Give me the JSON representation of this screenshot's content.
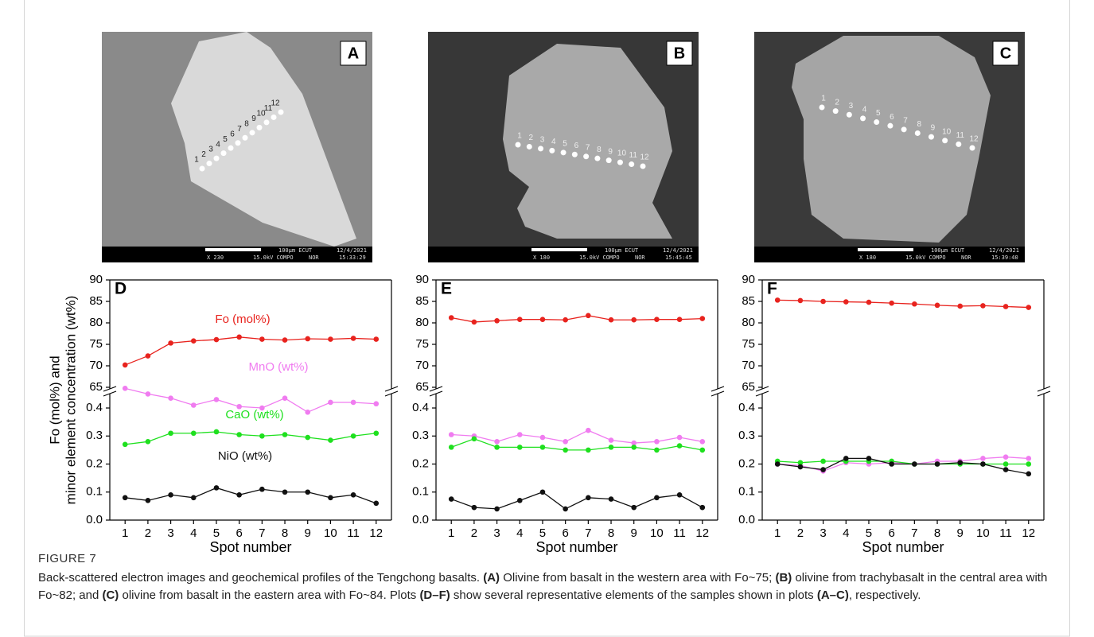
{
  "images": [
    {
      "panel": "A",
      "background": "#8a8a8a",
      "grain": "#d9d9d9",
      "scale_bar": "100μm ECUT",
      "date": "12/4/2021",
      "magnification": "X 230",
      "settings": "15.0kV COMPO",
      "mode": "NOR",
      "time": "15:33:29",
      "spot_labels": [
        1,
        2,
        3,
        4,
        5,
        6,
        7,
        8,
        9,
        10,
        11,
        12
      ]
    },
    {
      "panel": "B",
      "background": "#373737",
      "grain": "#a9a9a9",
      "scale_bar": "100μm ECUT",
      "date": "12/4/2021",
      "magnification": "X 180",
      "settings": "15.0kV COMPO",
      "mode": "NOR",
      "time": "15:45:45",
      "spot_labels": [
        1,
        2,
        3,
        4,
        5,
        6,
        7,
        8,
        9,
        10,
        11,
        12
      ]
    },
    {
      "panel": "C",
      "background": "#3a3a3a",
      "grain": "#a5a5a5",
      "scale_bar": "100μm ECUT",
      "date": "12/4/2021",
      "magnification": "X 180",
      "settings": "15.0kV COMPO",
      "mode": "NOR",
      "time": "15:39:40",
      "spot_labels": [
        1,
        2,
        3,
        4,
        5,
        6,
        7,
        8,
        9,
        10,
        11,
        12
      ]
    }
  ],
  "chart_data": [
    {
      "type": "line",
      "panel": "D",
      "ylabel_lines": [
        "Fo (mol%) and",
        "minor element concentration (wt%)"
      ],
      "xlabel": "Spot number",
      "x": [
        1,
        2,
        3,
        4,
        5,
        6,
        7,
        8,
        9,
        10,
        11,
        12
      ],
      "xlim": [
        0.33,
        12.67
      ],
      "xticks": [
        1,
        2,
        3,
        4,
        5,
        6,
        7,
        8,
        9,
        10,
        11,
        12
      ],
      "ylim": [
        0,
        0.45
      ],
      "yticks": [
        {
          "value": 0,
          "label": "0.0"
        },
        0.1,
        0.2,
        0.3,
        0.4
      ],
      "y2lim": [
        65,
        90
      ],
      "y2ticks": [
        65,
        70,
        75,
        80,
        85,
        90
      ],
      "broken_axis": true,
      "series": [
        {
          "name": "Fo (mol%)",
          "color": "#e8231e",
          "axis": "y2",
          "values": [
            70.2,
            72.3,
            75.3,
            75.8,
            76.1,
            76.7,
            76.2,
            76.0,
            76.3,
            76.2,
            76.4,
            76.2
          ]
        },
        {
          "name": "MnO (wt%)",
          "color": "#f07cf0",
          "values": [
            0.47,
            0.45,
            0.435,
            0.41,
            0.43,
            0.405,
            0.4,
            0.435,
            0.385,
            0.42,
            0.42,
            0.415
          ]
        },
        {
          "name": "CaO (wt%)",
          "color": "#1ee01e",
          "values": [
            0.27,
            0.28,
            0.31,
            0.31,
            0.315,
            0.305,
            0.3,
            0.305,
            0.295,
            0.285,
            0.3,
            0.31
          ]
        },
        {
          "name": "NiO (wt%)",
          "color": "#111111",
          "values": [
            0.08,
            0.07,
            0.09,
            0.08,
            0.115,
            0.09,
            0.11,
            0.1,
            0.1,
            0.08,
            0.09,
            0.06
          ]
        }
      ]
    },
    {
      "type": "line",
      "panel": "E",
      "xlabel": "Spot number",
      "x": [
        1,
        2,
        3,
        4,
        5,
        6,
        7,
        8,
        9,
        10,
        11,
        12
      ],
      "xlim": [
        0.33,
        12.67
      ],
      "xticks": [
        1,
        2,
        3,
        4,
        5,
        6,
        7,
        8,
        9,
        10,
        11,
        12
      ],
      "ylim": [
        0,
        0.45
      ],
      "yticks": [
        {
          "value": 0,
          "label": "0.0"
        },
        0.1,
        0.2,
        0.3,
        0.4
      ],
      "y2lim": [
        65,
        90
      ],
      "y2ticks": [
        65,
        70,
        75,
        80,
        85,
        90
      ],
      "broken_axis": true,
      "series": [
        {
          "color": "#e8231e",
          "axis": "y2",
          "values": [
            81.2,
            80.2,
            80.5,
            80.8,
            80.8,
            80.7,
            81.7,
            80.7,
            80.7,
            80.8,
            80.8,
            81.0
          ]
        },
        {
          "color": "#f07cf0",
          "values": [
            0.305,
            0.3,
            0.28,
            0.305,
            0.295,
            0.28,
            0.32,
            0.285,
            0.275,
            0.28,
            0.295,
            0.28
          ]
        },
        {
          "color": "#1ee01e",
          "values": [
            0.26,
            0.29,
            0.26,
            0.26,
            0.26,
            0.25,
            0.25,
            0.26,
            0.26,
            0.25,
            0.265,
            0.25
          ]
        },
        {
          "color": "#111111",
          "values": [
            0.075,
            0.045,
            0.04,
            0.07,
            0.1,
            0.04,
            0.08,
            0.075,
            0.045,
            0.08,
            0.09,
            0.045
          ]
        }
      ]
    },
    {
      "type": "line",
      "panel": "F",
      "xlabel": "Spot number",
      "x": [
        1,
        2,
        3,
        4,
        5,
        6,
        7,
        8,
        9,
        10,
        11,
        12
      ],
      "xlim": [
        0.33,
        12.67
      ],
      "xticks": [
        1,
        2,
        3,
        4,
        5,
        6,
        7,
        8,
        9,
        10,
        11,
        12
      ],
      "ylim": [
        0,
        0.45
      ],
      "yticks": [
        {
          "value": 0,
          "label": "0.0"
        },
        0.1,
        0.2,
        0.3,
        0.4
      ],
      "y2lim": [
        65,
        90
      ],
      "y2ticks": [
        65,
        70,
        75,
        80,
        85,
        90
      ],
      "broken_axis": true,
      "series": [
        {
          "color": "#e8231e",
          "axis": "y2",
          "values": [
            85.3,
            85.2,
            85.0,
            84.9,
            84.8,
            84.6,
            84.4,
            84.1,
            83.9,
            84.0,
            83.8,
            83.6
          ]
        },
        {
          "color": "#f07cf0",
          "values": [
            0.2,
            0.195,
            0.175,
            0.205,
            0.2,
            0.205,
            0.2,
            0.21,
            0.21,
            0.22,
            0.225,
            0.22
          ]
        },
        {
          "color": "#1ee01e",
          "values": [
            0.21,
            0.205,
            0.21,
            0.21,
            0.21,
            0.21,
            0.2,
            0.2,
            0.2,
            0.2,
            0.2,
            0.2
          ]
        },
        {
          "color": "#111111",
          "values": [
            0.2,
            0.19,
            0.18,
            0.22,
            0.22,
            0.2,
            0.2,
            0.2,
            0.205,
            0.2,
            0.18,
            0.165
          ]
        }
      ]
    }
  ],
  "caption": {
    "label": "FIGURE 7",
    "parts": [
      {
        "text": "Back-scattered electron images and geochemical profiles of the Tengchong basalts. "
      },
      {
        "text": "(A)",
        "bold": true
      },
      {
        "text": " Olivine from basalt in the western area with Fo~75; "
      },
      {
        "text": "(B)",
        "bold": true
      },
      {
        "text": " olivine from trachybasalt in the central area with Fo~82; and "
      },
      {
        "text": "(C)",
        "bold": true
      },
      {
        "text": " olivine from basalt in the eastern area with Fo~84. Plots "
      },
      {
        "text": "(D–F)",
        "bold": true
      },
      {
        "text": " show several representative elements of the samples shown in plots "
      },
      {
        "text": "(A–C)",
        "bold": true
      },
      {
        "text": ", respectively."
      }
    ]
  }
}
